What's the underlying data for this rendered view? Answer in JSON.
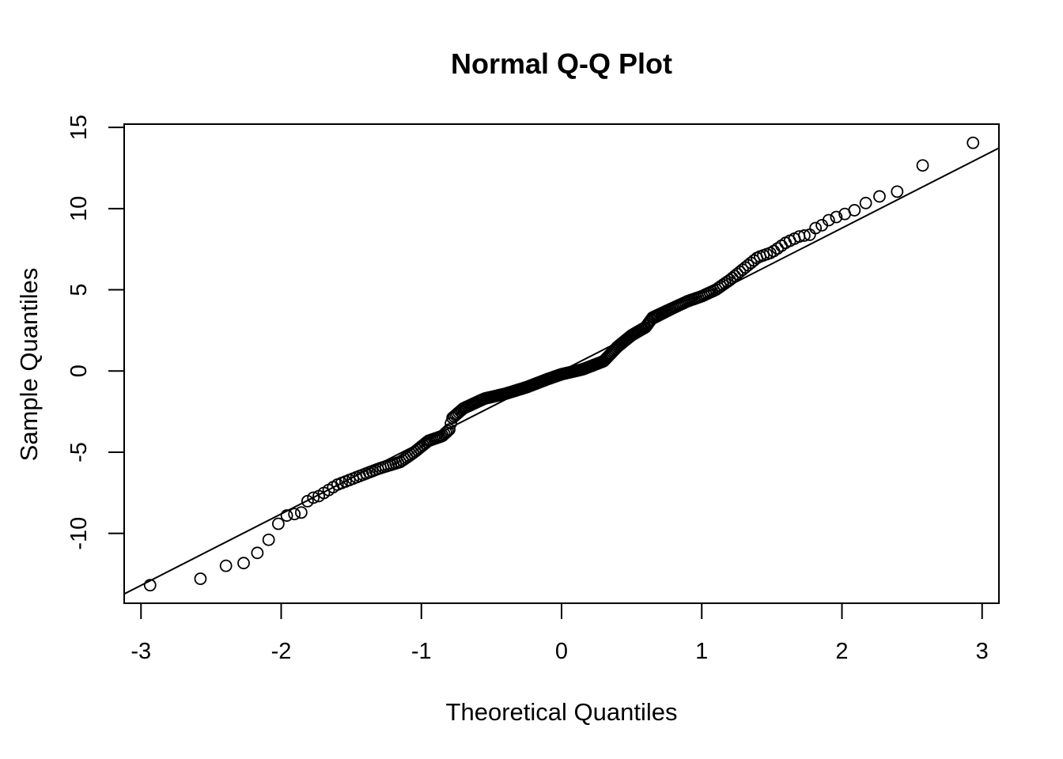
{
  "chart_data": {
    "type": "scatter",
    "title": "Normal Q-Q Plot",
    "xlabel": "Theoretical Quantiles",
    "ylabel": "Sample Quantiles",
    "xlim": [
      -3.12,
      3.12
    ],
    "ylim": [
      -14.3,
      15.2
    ],
    "x_ticks": [
      -3,
      -2,
      -1,
      0,
      1,
      2,
      3
    ],
    "x_tick_labels": [
      "-3",
      "-2",
      "-1",
      "0",
      "1",
      "2",
      "3"
    ],
    "y_ticks": [
      -10,
      -5,
      0,
      5,
      10,
      15
    ],
    "y_tick_labels": [
      "-10",
      "-5",
      "0",
      "5",
      "10",
      "15"
    ],
    "grid": false,
    "point_style": "open-circle",
    "reference_line": {
      "intercept": 0.0,
      "slope": 4.4
    },
    "quantile_anchors": {
      "x": [
        -2.95,
        -2.6,
        -2.4,
        -2.28,
        -2.18,
        -2.09,
        -2.02,
        -1.96,
        -1.9,
        -1.85,
        -1.8,
        -1.75,
        -1.6,
        -1.45,
        -1.3,
        -1.15,
        -1.05,
        -0.95,
        -0.85,
        -0.8,
        -0.78,
        -0.7,
        -0.55,
        -0.4,
        -0.25,
        -0.1,
        0.0,
        0.15,
        0.3,
        0.4,
        0.5,
        0.6,
        0.65,
        0.75,
        0.9,
        1.0,
        1.1,
        1.2,
        1.3,
        1.4,
        1.5,
        1.6,
        1.7,
        1.78,
        1.82,
        1.87,
        1.92,
        1.97,
        2.03,
        2.09,
        2.16,
        2.28,
        2.42,
        2.6,
        2.95
      ],
      "y": [
        -13.2,
        -12.9,
        -12.0,
        -11.9,
        -11.3,
        -10.4,
        -9.4,
        -8.9,
        -8.8,
        -8.7,
        -7.8,
        -7.8,
        -7.0,
        -6.5,
        -6.0,
        -5.6,
        -5.0,
        -4.3,
        -4.0,
        -3.6,
        -2.9,
        -2.3,
        -1.7,
        -1.4,
        -1.0,
        -0.5,
        -0.2,
        0.1,
        0.6,
        1.5,
        2.2,
        2.7,
        3.3,
        3.7,
        4.3,
        4.6,
        5.0,
        5.6,
        6.3,
        7.0,
        7.3,
        7.9,
        8.3,
        8.4,
        8.9,
        9.0,
        9.4,
        9.5,
        9.7,
        9.9,
        10.3,
        10.8,
        11.1,
        12.9,
        14.1
      ]
    },
    "n_points": 300
  }
}
